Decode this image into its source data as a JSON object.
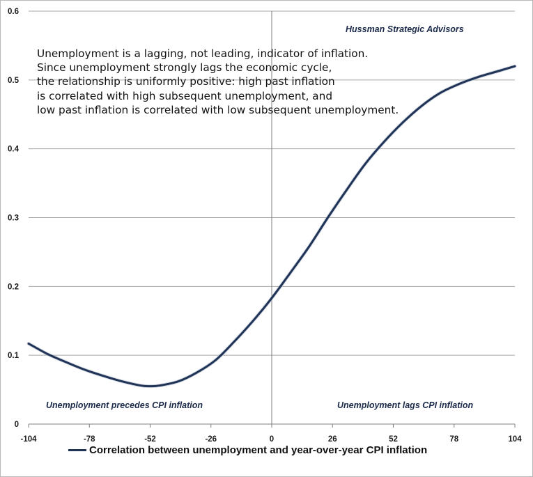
{
  "chart_data": {
    "type": "line",
    "title": "",
    "xlabel": "",
    "ylabel": "",
    "xlim": [
      -104,
      104
    ],
    "ylim": [
      0,
      0.6
    ],
    "x_ticks": [
      "-104",
      "-78",
      "-52",
      "-26",
      "0",
      "26",
      "52",
      "78",
      "104"
    ],
    "y_ticks": [
      "0",
      "0.1",
      "0.2",
      "0.3",
      "0.4",
      "0.5",
      "0.6"
    ],
    "grid": "horizontal",
    "legend_position": "bottom",
    "series": [
      {
        "name": "Correlation between unemployment and year-over-year CPI inflation",
        "color": "#1f3357",
        "x": [
          -104,
          -96,
          -88,
          -80,
          -72,
          -64,
          -56,
          -52,
          -48,
          -40,
          -32,
          -24,
          -16,
          -8,
          0,
          8,
          16,
          24,
          32,
          40,
          48,
          56,
          64,
          72,
          80,
          88,
          96,
          104
        ],
        "y": [
          0.117,
          0.102,
          0.09,
          0.079,
          0.07,
          0.062,
          0.056,
          0.055,
          0.056,
          0.062,
          0.075,
          0.093,
          0.12,
          0.15,
          0.183,
          0.22,
          0.258,
          0.3,
          0.34,
          0.378,
          0.41,
          0.438,
          0.462,
          0.481,
          0.494,
          0.504,
          0.512,
          0.52
        ]
      }
    ]
  },
  "annotation_lines": [
    "Unemployment is a lagging, not leading, indicator of inflation.",
    "Since unemployment strongly lags the economic cycle,",
    "the relationship is uniformly positive: high past inflation",
    "is correlated with high subsequent unemployment, and",
    "low past inflation is correlated with low subsequent unemployment."
  ],
  "source": "Hussman Strategic Advisors",
  "left_note": "Unemployment precedes CPI inflation",
  "right_note": "Unemployment lags CPI inflation"
}
